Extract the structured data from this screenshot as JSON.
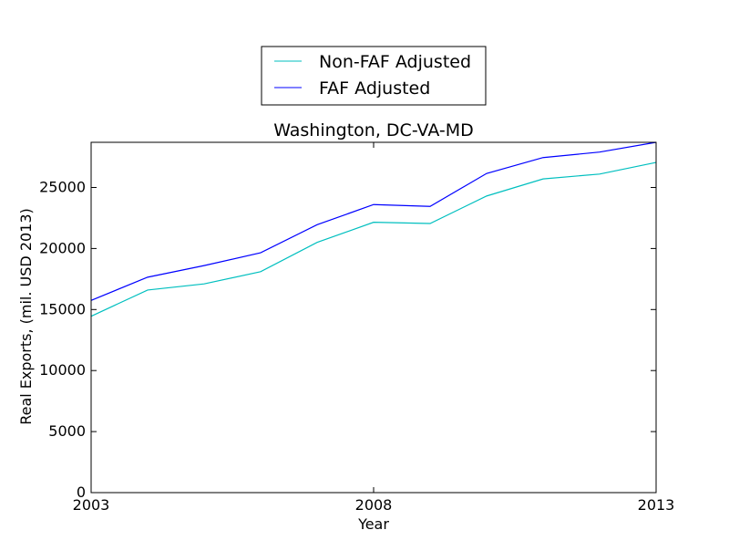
{
  "chart_data": {
    "type": "line",
    "title": "Washington, DC-VA-MD",
    "xlabel": "Year",
    "ylabel": "Real Exports, (mil. USD 2013)",
    "xlim": [
      2003,
      2013
    ],
    "ylim": [
      0,
      28700
    ],
    "x_ticks": [
      2003,
      2008,
      2013
    ],
    "y_ticks": [
      0,
      5000,
      10000,
      15000,
      20000,
      25000
    ],
    "grid": false,
    "legend_position": "top-center",
    "x": [
      2003,
      2004,
      2005,
      2006,
      2007,
      2008,
      2009,
      2010,
      2011,
      2012,
      2013
    ],
    "series": [
      {
        "name": "Non-FAF Adjusted",
        "color": "#00bfbf",
        "values": [
          14450,
          16600,
          17100,
          18100,
          20500,
          22150,
          22050,
          24300,
          25700,
          26100,
          27050
        ]
      },
      {
        "name": "FAF Adjusted",
        "color": "#0000ff",
        "values": [
          15750,
          17650,
          18600,
          19650,
          21950,
          23600,
          23450,
          26150,
          27450,
          27900,
          28700
        ]
      }
    ]
  }
}
